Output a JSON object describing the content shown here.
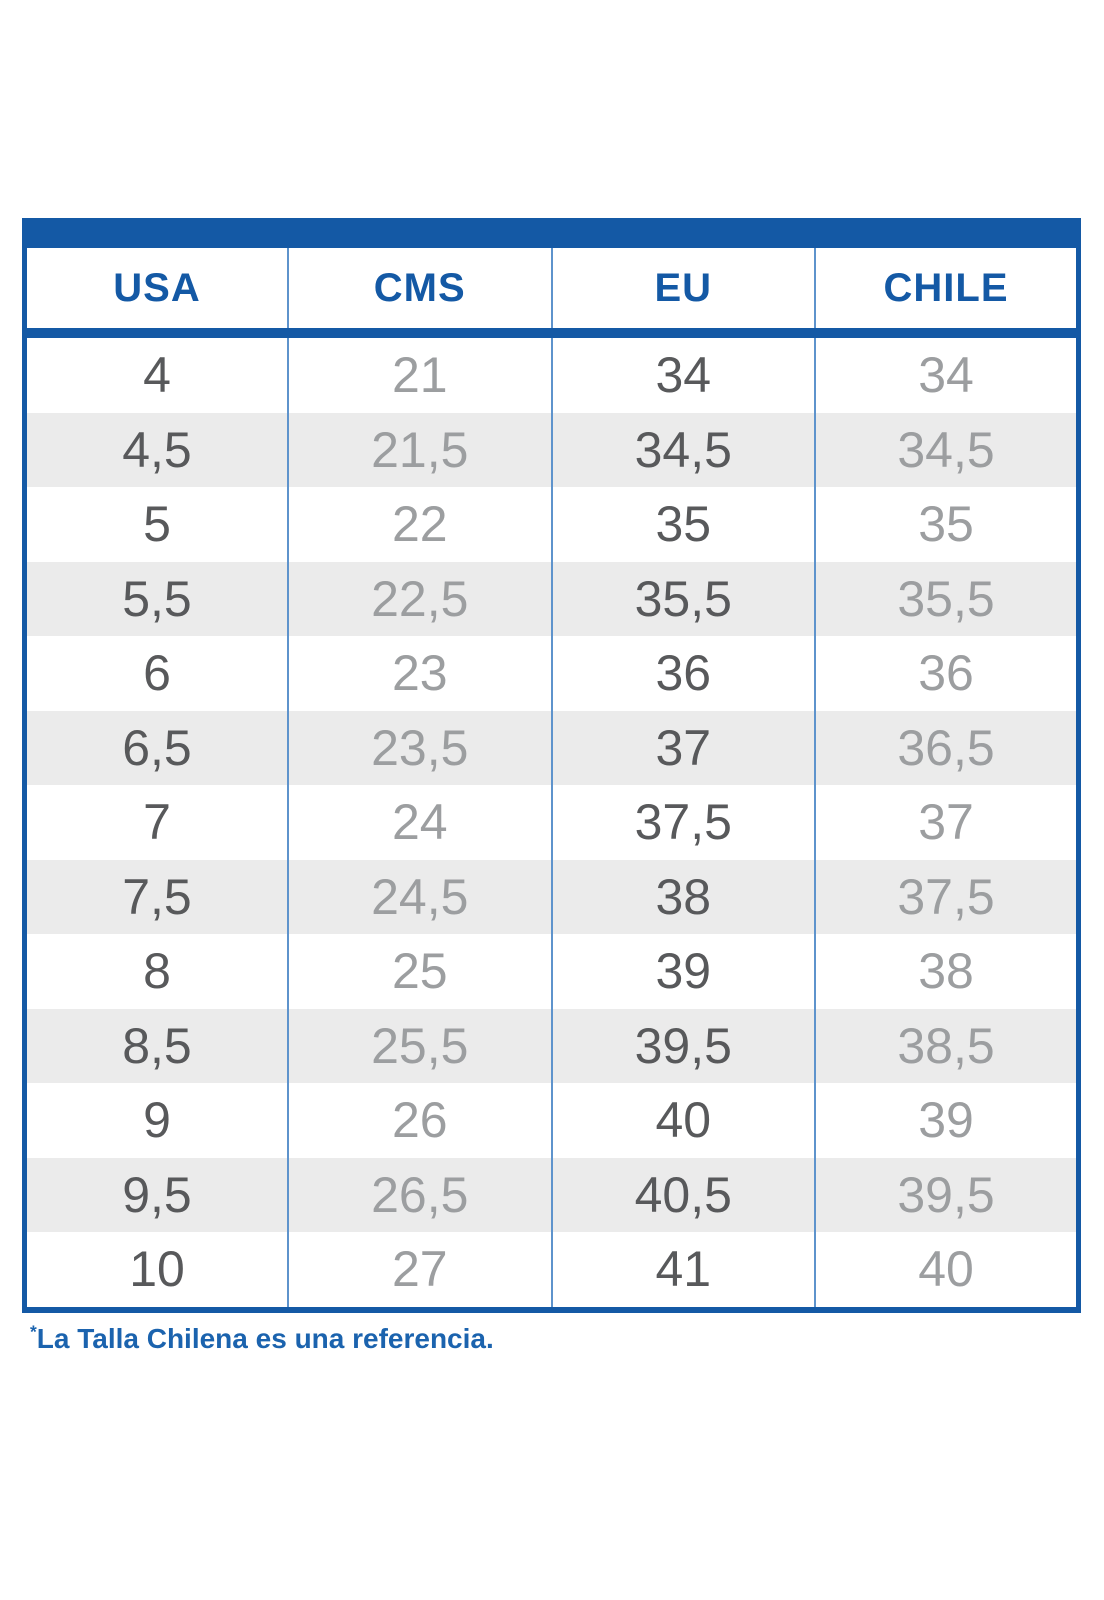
{
  "chart_data": {
    "type": "table",
    "title": "",
    "columns": [
      "USA",
      "CMS",
      "EU",
      "CHILE"
    ],
    "rows": [
      [
        "4",
        "21",
        "34",
        "34"
      ],
      [
        "4,5",
        "21,5",
        "34,5",
        "34,5"
      ],
      [
        "5",
        "22",
        "35",
        "35"
      ],
      [
        "5,5",
        "22,5",
        "35,5",
        "35,5"
      ],
      [
        "6",
        "23",
        "36",
        "36"
      ],
      [
        "6,5",
        "23,5",
        "37",
        "36,5"
      ],
      [
        "7",
        "24",
        "37,5",
        "37"
      ],
      [
        "7,5",
        "24,5",
        "38",
        "37,5"
      ],
      [
        "8",
        "25",
        "39",
        "38"
      ],
      [
        "8,5",
        "25,5",
        "39,5",
        "38,5"
      ],
      [
        "9",
        "26",
        "40",
        "39"
      ],
      [
        "9,5",
        "26,5",
        "40,5",
        "39,5"
      ],
      [
        "10",
        "27",
        "41",
        "40"
      ]
    ],
    "layout_hints": {
      "alternating_row_stripes": true,
      "dark_text_columns": [
        "USA",
        "EU"
      ],
      "light_text_columns": [
        "CMS",
        "CHILE"
      ]
    }
  },
  "footnote": {
    "marker": "*",
    "text": "La Talla Chilena es una referencia."
  },
  "colors": {
    "brand_blue": "#1459A5",
    "divider_blue": "#5E93CC",
    "row_alt_gray": "#EBEBEB",
    "text_dark": "#58595B",
    "text_light": "#9C9EA0",
    "footnote_blue": "#1B63AE"
  }
}
